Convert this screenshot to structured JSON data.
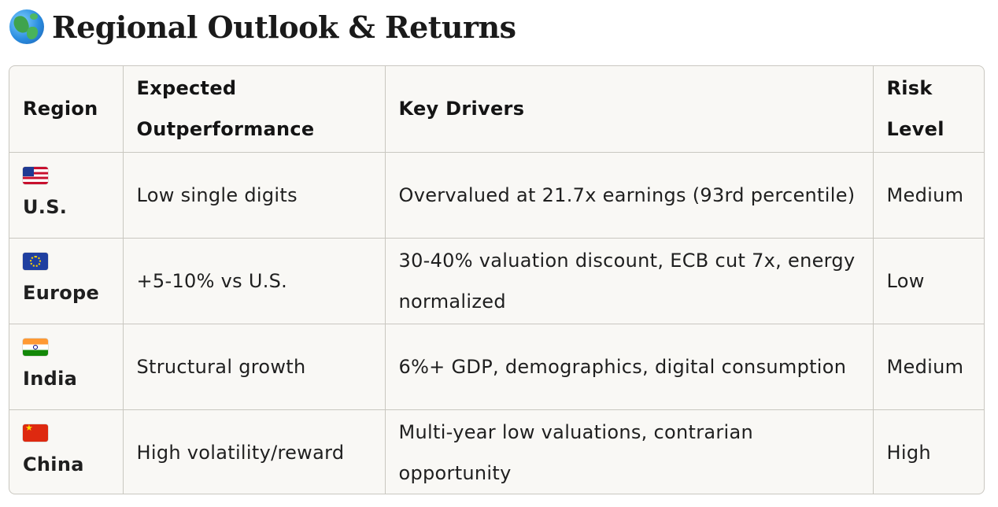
{
  "heading": {
    "title": "Regional Outlook & Returns",
    "icon": "globe-icon"
  },
  "table": {
    "headers": [
      "Region",
      "Expected Outperformance",
      "Key Drivers",
      "Risk Level"
    ],
    "rows": [
      {
        "flag": "us-flag-icon",
        "region": "U.S.",
        "outperformance": "Low single digits",
        "drivers": "Overvalued at 21.7x earnings (93rd percentile)",
        "risk": "Medium"
      },
      {
        "flag": "eu-flag-icon",
        "region": "Europe",
        "outperformance": "+5-10% vs U.S.",
        "drivers": "30-40% valuation discount, ECB cut 7x, energy normalized",
        "risk": "Low"
      },
      {
        "flag": "india-flag-icon",
        "region": "India",
        "outperformance": "Structural growth",
        "drivers": "6%+ GDP, demographics, digital consumption",
        "risk": "Medium"
      },
      {
        "flag": "china-flag-icon",
        "region": "China",
        "outperformance": "High volatility/reward",
        "drivers": "Multi-year low valuations, contrarian opportunity",
        "risk": "High"
      }
    ]
  }
}
